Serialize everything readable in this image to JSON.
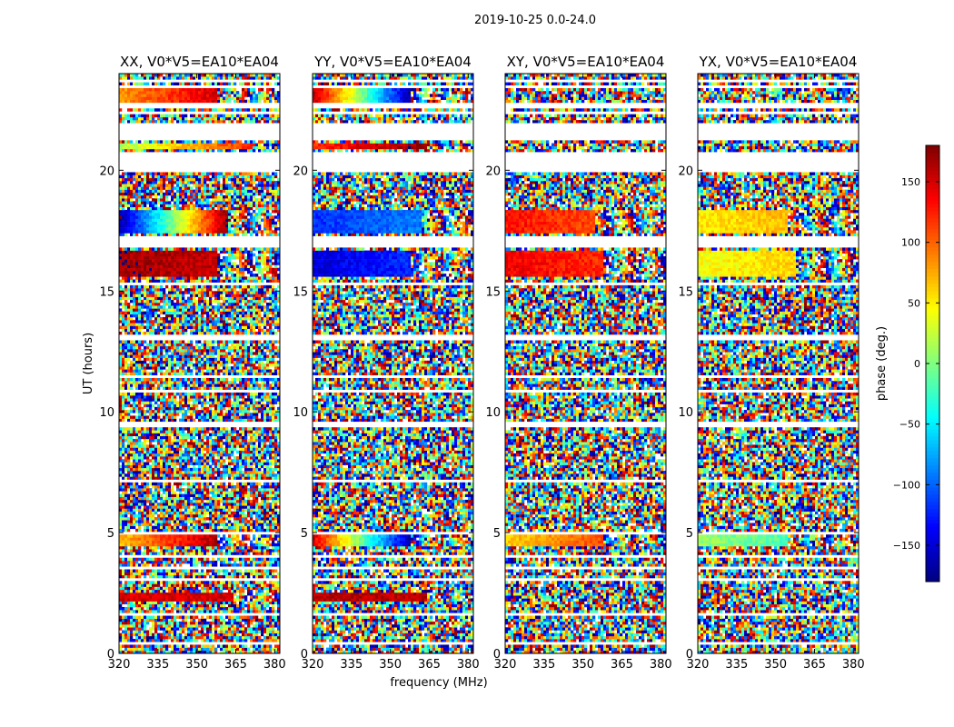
{
  "figure_title": "2019-10-25 0.0-24.0",
  "chart_data": {
    "type": "heatmap",
    "title": "2019-10-25 0.0-24.0",
    "xlabel": "frequency (MHz)",
    "ylabel": "UT (hours)",
    "xlim": [
      320,
      382
    ],
    "ylim": [
      0,
      24
    ],
    "xticks": [
      320,
      335,
      350,
      365,
      380
    ],
    "yticks": [
      0,
      5,
      10,
      15,
      20
    ],
    "colorbar": {
      "label": "phase (deg.)",
      "range": [
        -180,
        180
      ],
      "ticks": [
        -150,
        -100,
        -50,
        0,
        50,
        100,
        150
      ],
      "tick_labels": [
        "−150",
        "−100",
        "−50",
        "0",
        "50",
        "100",
        "150"
      ],
      "colormap": "jet",
      "stops": [
        "#00007f",
        "#0000ff",
        "#007fff",
        "#00ffff",
        "#7fff7f",
        "#ffff00",
        "#ff7f00",
        "#ff0000",
        "#7f0000"
      ]
    },
    "panels": [
      {
        "title": "XX, V0*V5=EA10*EA04",
        "polarization": "XX",
        "coherent_bands": [
          {
            "ut": [
              2.2,
              2.55
            ],
            "phase_start": 150,
            "phase_end": 150,
            "band_end_mhz": 364
          },
          {
            "ut": [
              4.5,
              4.9
            ],
            "phase_start": 65,
            "phase_end": 165,
            "band_end_mhz": 358
          },
          {
            "ut": [
              15.6,
              16.7
            ],
            "phase_start": 170,
            "phase_end": 155,
            "band_end_mhz": 358
          },
          {
            "ut": [
              17.4,
              18.4
            ],
            "phase_start": -170,
            "phase_end": 175,
            "band_end_mhz": 362
          },
          {
            "ut": [
              20.85,
              21.15
            ],
            "phase_start": 15,
            "phase_end": 125,
            "band_end_mhz": 372
          },
          {
            "ut": [
              22.8,
              23.4
            ],
            "phase_start": 80,
            "phase_end": 150,
            "band_end_mhz": 358
          }
        ]
      },
      {
        "title": "YY, V0*V5=EA10*EA04",
        "polarization": "YY",
        "coherent_bands": [
          {
            "ut": [
              2.2,
              2.55
            ],
            "phase_start": 160,
            "phase_end": 160,
            "band_end_mhz": 364
          },
          {
            "ut": [
              4.5,
              4.9
            ],
            "phase_start": 150,
            "phase_end": -165,
            "band_end_mhz": 358
          },
          {
            "ut": [
              15.6,
              16.7
            ],
            "phase_start": -150,
            "phase_end": -120,
            "band_end_mhz": 358
          },
          {
            "ut": [
              17.4,
              18.4
            ],
            "phase_start": -120,
            "phase_end": -90,
            "band_end_mhz": 362
          },
          {
            "ut": [
              20.85,
              21.15
            ],
            "phase_start": 120,
            "phase_end": 175,
            "band_end_mhz": 364
          },
          {
            "ut": [
              22.8,
              23.4
            ],
            "phase_start": 165,
            "phase_end": -170,
            "band_end_mhz": 358
          }
        ]
      },
      {
        "title": "XY, V0*V5=EA10*EA04",
        "polarization": "XY",
        "coherent_bands": [
          {
            "ut": [
              4.5,
              4.9
            ],
            "phase_start": 60,
            "phase_end": 110,
            "band_end_mhz": 358
          },
          {
            "ut": [
              15.6,
              16.7
            ],
            "phase_start": 140,
            "phase_end": 120,
            "band_end_mhz": 358
          },
          {
            "ut": [
              17.4,
              18.4
            ],
            "phase_start": 130,
            "phase_end": 110,
            "band_end_mhz": 355
          }
        ]
      },
      {
        "title": "YX, V0*V5=EA10*EA04",
        "polarization": "YX",
        "coherent_bands": [
          {
            "ut": [
              4.5,
              4.9
            ],
            "phase_start": 10,
            "phase_end": -20,
            "band_end_mhz": 355
          },
          {
            "ut": [
              15.6,
              16.7
            ],
            "phase_start": 40,
            "phase_end": 60,
            "band_end_mhz": 358
          },
          {
            "ut": [
              17.4,
              18.4
            ],
            "phase_start": 50,
            "phase_end": 70,
            "band_end_mhz": 355
          }
        ]
      }
    ],
    "flagged_ut_ranges": [
      [
        0.35,
        0.45
      ],
      [
        1.15,
        1.25
      ],
      [
        1.6,
        1.7
      ],
      [
        2.0,
        2.08
      ],
      [
        3.05,
        3.15
      ],
      [
        3.5,
        3.6
      ],
      [
        4.0,
        4.1
      ],
      [
        4.95,
        5.03
      ],
      [
        6.0,
        6.05
      ],
      [
        7.1,
        7.18
      ],
      [
        9.35,
        9.55
      ],
      [
        10.8,
        10.9
      ],
      [
        11.4,
        11.55
      ],
      [
        12.3,
        12.4
      ],
      [
        13.0,
        13.15
      ],
      [
        15.25,
        15.35
      ],
      [
        16.8,
        17.3
      ],
      [
        19.95,
        20.05
      ],
      [
        20.1,
        20.8
      ],
      [
        21.2,
        22.0
      ],
      [
        22.3,
        22.45
      ],
      [
        22.55,
        22.75
      ],
      [
        23.45,
        23.55
      ],
      [
        23.7,
        23.8
      ]
    ]
  }
}
